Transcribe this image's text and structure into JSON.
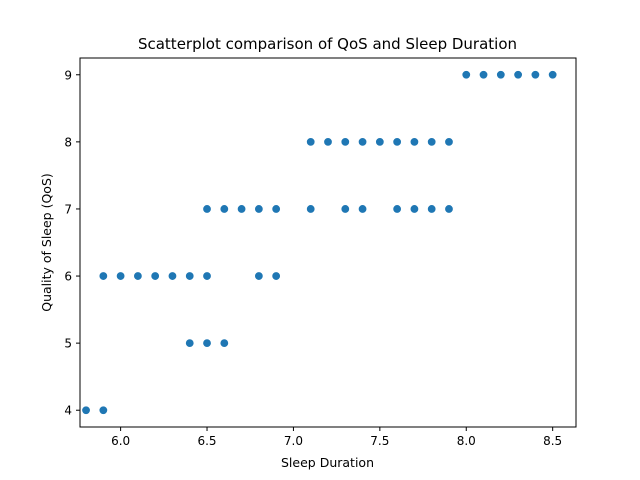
{
  "chart_data": {
    "type": "scatter",
    "title": "Scatterplot comparison of QoS and Sleep Duration",
    "xlabel": "Sleep Duration",
    "ylabel": "Quality of Sleep (QoS)",
    "xlim": [
      5.765,
      8.635
    ],
    "ylim": [
      3.75,
      9.25
    ],
    "xticks": [
      "6.0",
      "6.5",
      "7.0",
      "7.5",
      "8.0",
      "8.5"
    ],
    "xtick_values": [
      6.0,
      6.5,
      7.0,
      7.5,
      8.0,
      8.5
    ],
    "yticks": [
      "4",
      "5",
      "6",
      "7",
      "8",
      "9"
    ],
    "ytick_values": [
      4,
      5,
      6,
      7,
      8,
      9
    ],
    "grid": false,
    "point_color": "#1f77b4",
    "points": [
      {
        "x": 5.8,
        "y": 4
      },
      {
        "x": 5.9,
        "y": 4
      },
      {
        "x": 6.4,
        "y": 5
      },
      {
        "x": 6.5,
        "y": 5
      },
      {
        "x": 6.6,
        "y": 5
      },
      {
        "x": 5.9,
        "y": 6
      },
      {
        "x": 6.0,
        "y": 6
      },
      {
        "x": 6.1,
        "y": 6
      },
      {
        "x": 6.2,
        "y": 6
      },
      {
        "x": 6.3,
        "y": 6
      },
      {
        "x": 6.4,
        "y": 6
      },
      {
        "x": 6.5,
        "y": 6
      },
      {
        "x": 6.8,
        "y": 6
      },
      {
        "x": 6.9,
        "y": 6
      },
      {
        "x": 6.5,
        "y": 7
      },
      {
        "x": 6.6,
        "y": 7
      },
      {
        "x": 6.7,
        "y": 7
      },
      {
        "x": 6.8,
        "y": 7
      },
      {
        "x": 6.9,
        "y": 7
      },
      {
        "x": 7.1,
        "y": 7
      },
      {
        "x": 7.3,
        "y": 7
      },
      {
        "x": 7.4,
        "y": 7
      },
      {
        "x": 7.6,
        "y": 7
      },
      {
        "x": 7.7,
        "y": 7
      },
      {
        "x": 7.8,
        "y": 7
      },
      {
        "x": 7.9,
        "y": 7
      },
      {
        "x": 7.1,
        "y": 8
      },
      {
        "x": 7.2,
        "y": 8
      },
      {
        "x": 7.3,
        "y": 8
      },
      {
        "x": 7.4,
        "y": 8
      },
      {
        "x": 7.5,
        "y": 8
      },
      {
        "x": 7.6,
        "y": 8
      },
      {
        "x": 7.7,
        "y": 8
      },
      {
        "x": 7.8,
        "y": 8
      },
      {
        "x": 7.9,
        "y": 8
      },
      {
        "x": 8.0,
        "y": 9
      },
      {
        "x": 8.1,
        "y": 9
      },
      {
        "x": 8.2,
        "y": 9
      },
      {
        "x": 8.3,
        "y": 9
      },
      {
        "x": 8.4,
        "y": 9
      },
      {
        "x": 8.5,
        "y": 9
      }
    ]
  }
}
